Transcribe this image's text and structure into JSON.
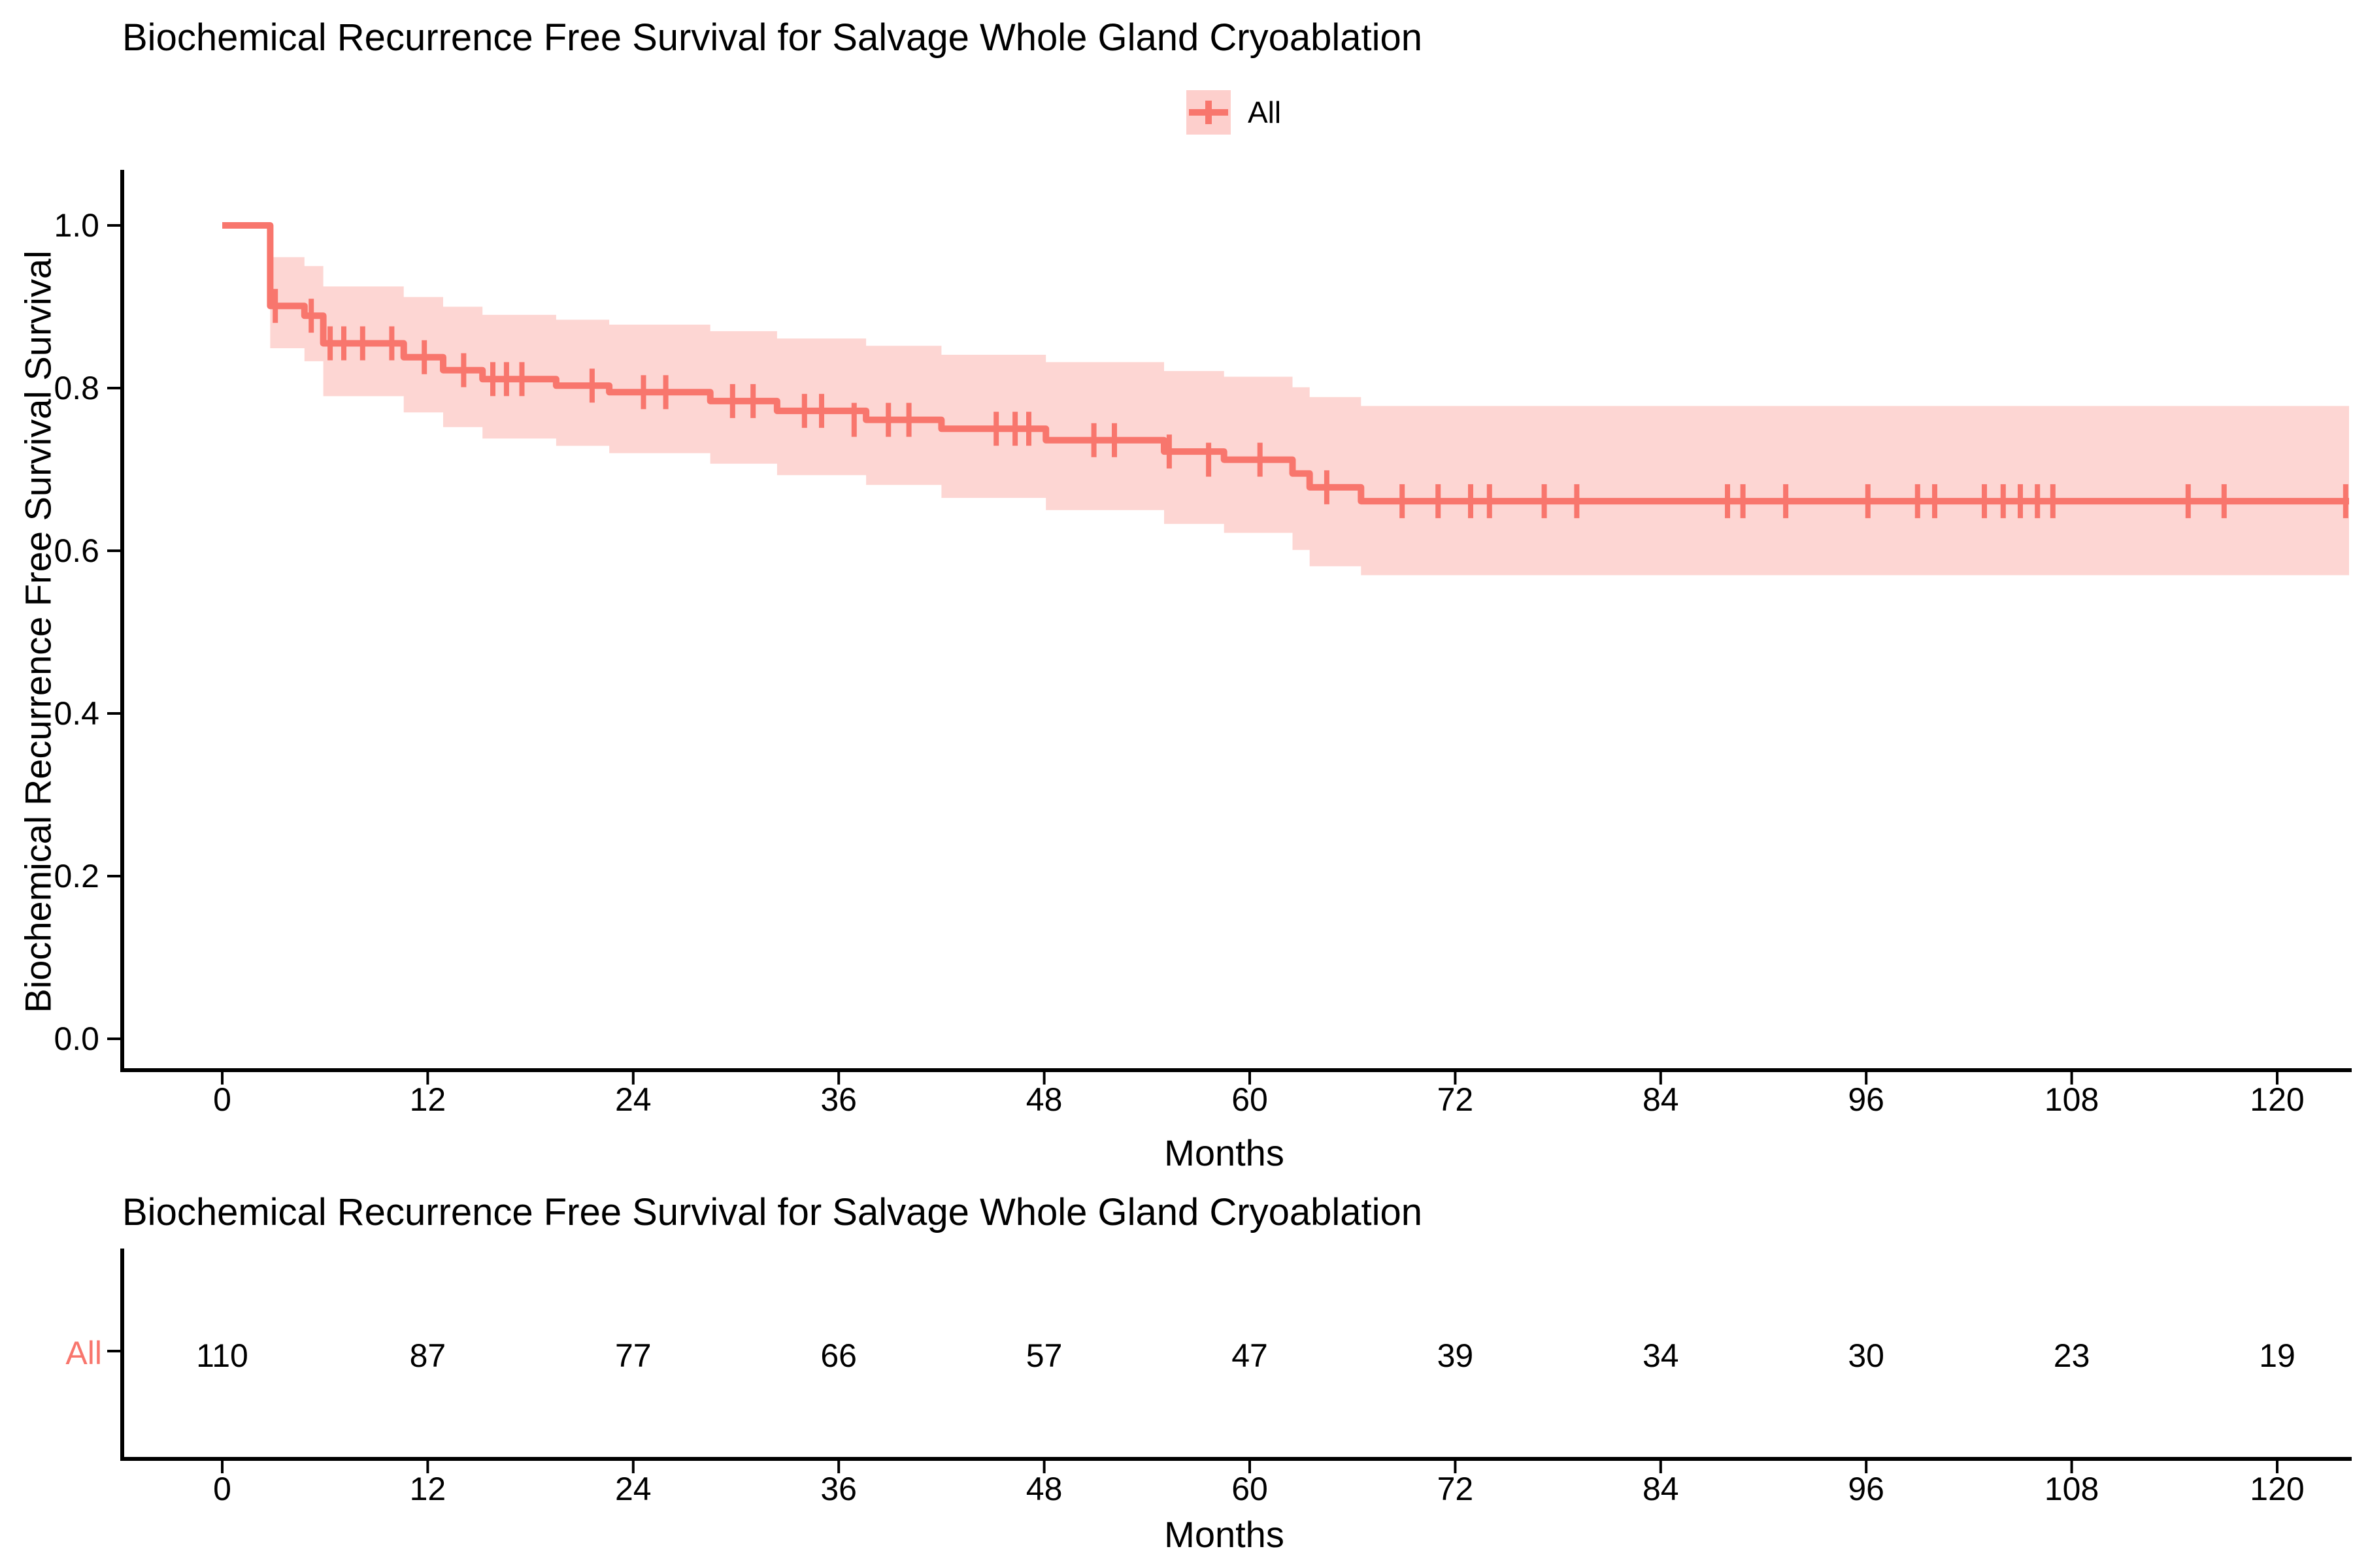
{
  "chart_data": {
    "type": "line",
    "subtype": "kaplan_meier_step_with_confidence_band",
    "title": "Biochemical Recurrence Free Survival for Salvage Whole Gland Cryoablation",
    "xlabel": "Months",
    "ylabel": "Biochemical Recurrence Free Survival Survival",
    "legend_position": "top",
    "legend_entries": [
      "All"
    ],
    "grid": false,
    "xlim": [
      0,
      126
    ],
    "ylim": [
      0.0,
      1.0
    ],
    "x_ticks": [
      0,
      12,
      24,
      36,
      48,
      60,
      72,
      84,
      96,
      108,
      120
    ],
    "y_ticks": [
      {
        "value": 1.0,
        "label": "1.0"
      },
      {
        "value": 0.8,
        "label": "0.8"
      },
      {
        "value": 0.6,
        "label": "0.6"
      },
      {
        "value": 0.4,
        "label": "0.4"
      },
      {
        "value": 0.2,
        "label": "0.2"
      },
      {
        "value": 0.0,
        "label": "0.0"
      }
    ],
    "colors": {
      "curve": "#F8766D",
      "confidence_band": "rgba(248,118,109,0.30)",
      "legend_key_fill": "rgba(248,118,109,0.35)",
      "axis": "#000000",
      "text": "#000000"
    },
    "series": [
      {
        "name": "All",
        "color": "#F8766D",
        "end_time": 124.2,
        "steps": [
          {
            "t": 0.0,
            "s": 1.0
          },
          {
            "t": 2.8,
            "s": 0.901,
            "lo": 0.849,
            "hi": 0.961
          },
          {
            "t": 4.8,
            "s": 0.889,
            "lo": 0.833,
            "hi": 0.95
          },
          {
            "t": 5.9,
            "s": 0.855,
            "lo": 0.79,
            "hi": 0.925
          },
          {
            "t": 10.6,
            "s": 0.838,
            "lo": 0.77,
            "hi": 0.912
          },
          {
            "t": 12.9,
            "s": 0.822,
            "lo": 0.752,
            "hi": 0.9
          },
          {
            "t": 15.2,
            "s": 0.811,
            "lo": 0.738,
            "hi": 0.89
          },
          {
            "t": 19.5,
            "s": 0.803,
            "lo": 0.729,
            "hi": 0.884
          },
          {
            "t": 22.6,
            "s": 0.795,
            "lo": 0.72,
            "hi": 0.878
          },
          {
            "t": 28.5,
            "s": 0.784,
            "lo": 0.707,
            "hi": 0.87
          },
          {
            "t": 32.4,
            "s": 0.772,
            "lo": 0.693,
            "hi": 0.861
          },
          {
            "t": 37.6,
            "s": 0.761,
            "lo": 0.681,
            "hi": 0.852
          },
          {
            "t": 42.0,
            "s": 0.75,
            "lo": 0.665,
            "hi": 0.841
          },
          {
            "t": 48.1,
            "s": 0.736,
            "lo": 0.65,
            "hi": 0.832
          },
          {
            "t": 55.0,
            "s": 0.722,
            "lo": 0.633,
            "hi": 0.821
          },
          {
            "t": 58.5,
            "s": 0.712,
            "lo": 0.622,
            "hi": 0.814
          },
          {
            "t": 62.5,
            "s": 0.695,
            "lo": 0.601,
            "hi": 0.801
          },
          {
            "t": 63.5,
            "s": 0.678,
            "lo": 0.581,
            "hi": 0.789
          },
          {
            "t": 66.5,
            "s": 0.661,
            "lo": 0.57,
            "hi": 0.778
          }
        ],
        "censor_marks": [
          {
            "t": 3.1,
            "s": 0.901
          },
          {
            "t": 5.2,
            "s": 0.889
          },
          {
            "t": 6.3,
            "s": 0.855
          },
          {
            "t": 7.1,
            "s": 0.855
          },
          {
            "t": 8.2,
            "s": 0.855
          },
          {
            "t": 9.9,
            "s": 0.855
          },
          {
            "t": 11.8,
            "s": 0.838
          },
          {
            "t": 14.1,
            "s": 0.822
          },
          {
            "t": 15.8,
            "s": 0.811
          },
          {
            "t": 16.6,
            "s": 0.811
          },
          {
            "t": 17.5,
            "s": 0.811
          },
          {
            "t": 21.6,
            "s": 0.803
          },
          {
            "t": 24.6,
            "s": 0.795
          },
          {
            "t": 25.9,
            "s": 0.795
          },
          {
            "t": 29.8,
            "s": 0.784
          },
          {
            "t": 31.0,
            "s": 0.784
          },
          {
            "t": 34.0,
            "s": 0.772
          },
          {
            "t": 35.0,
            "s": 0.772
          },
          {
            "t": 36.9,
            "s": 0.761
          },
          {
            "t": 38.9,
            "s": 0.761
          },
          {
            "t": 40.1,
            "s": 0.761
          },
          {
            "t": 45.2,
            "s": 0.75
          },
          {
            "t": 46.3,
            "s": 0.75
          },
          {
            "t": 47.1,
            "s": 0.75
          },
          {
            "t": 50.9,
            "s": 0.736
          },
          {
            "t": 52.1,
            "s": 0.736
          },
          {
            "t": 55.3,
            "s": 0.722
          },
          {
            "t": 57.6,
            "s": 0.712
          },
          {
            "t": 60.6,
            "s": 0.712
          },
          {
            "t": 64.5,
            "s": 0.678
          },
          {
            "t": 68.9,
            "s": 0.661
          },
          {
            "t": 71.0,
            "s": 0.661
          },
          {
            "t": 72.9,
            "s": 0.661
          },
          {
            "t": 74.0,
            "s": 0.661
          },
          {
            "t": 77.2,
            "s": 0.661
          },
          {
            "t": 79.1,
            "s": 0.661
          },
          {
            "t": 87.9,
            "s": 0.661
          },
          {
            "t": 88.8,
            "s": 0.661
          },
          {
            "t": 91.3,
            "s": 0.661
          },
          {
            "t": 96.1,
            "s": 0.661
          },
          {
            "t": 99.0,
            "s": 0.661
          },
          {
            "t": 100.0,
            "s": 0.661
          },
          {
            "t": 102.9,
            "s": 0.661
          },
          {
            "t": 104.0,
            "s": 0.661
          },
          {
            "t": 105.0,
            "s": 0.661
          },
          {
            "t": 106.0,
            "s": 0.661
          },
          {
            "t": 106.9,
            "s": 0.661
          },
          {
            "t": 114.8,
            "s": 0.661
          },
          {
            "t": 116.9,
            "s": 0.661
          },
          {
            "t": 124.0,
            "s": 0.661
          }
        ]
      }
    ],
    "risk_table": {
      "title": "Biochemical Recurrence Free Survival for Salvage Whole Gland Cryoablation",
      "row_label": "All",
      "row_label_color": "#F8766D",
      "xlabel": "Months",
      "times": [
        0,
        12,
        24,
        36,
        48,
        60,
        72,
        84,
        96,
        108,
        120
      ],
      "at_risk": [
        110,
        87,
        77,
        66,
        57,
        47,
        39,
        34,
        30,
        23,
        19
      ]
    }
  }
}
